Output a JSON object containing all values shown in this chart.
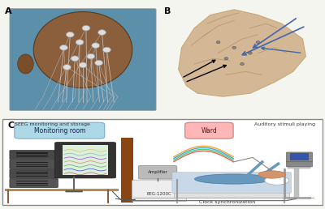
{
  "bg_color": "#f5f5f0",
  "panel_a_label": "A",
  "panel_b_label": "B",
  "panel_c_label": "C",
  "monitoring_room_label": "Monitoring room",
  "ward_label": "Ward",
  "seeg_label": "SEEG monitoring and storage",
  "amplifier_label": "Amplifier",
  "eeg_label": "EEG-1200C",
  "clock_label": "Clock synchronization",
  "auditory_label": "Auditory stimuli playing",
  "panel_a_bg": "#5b8faa",
  "panel_b_bg": "#f0ece4",
  "border_color": "#888888",
  "monitoring_badge_color": "#add8e6",
  "ward_badge_color": "#ffb6b6",
  "wall_color": "#8B4513",
  "shelf_color": "#c8a060",
  "brain_color": "#d4b896",
  "electrode_color": "#4466aa",
  "wire_colors": [
    "#e74c3c",
    "#2ecc71",
    "#3498db",
    "#f39c12"
  ]
}
